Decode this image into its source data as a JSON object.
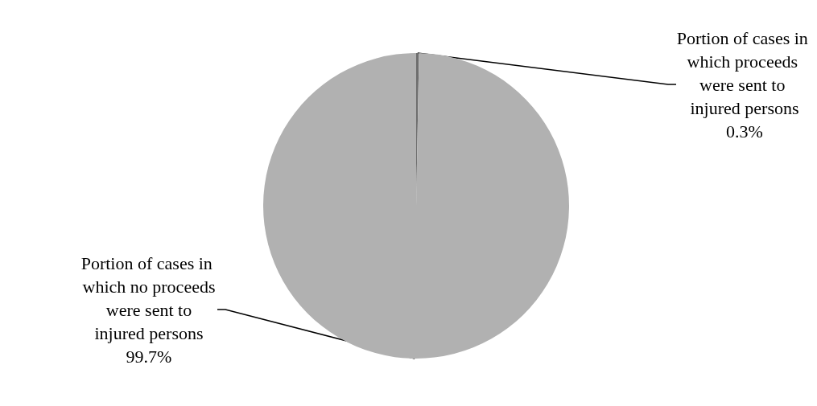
{
  "chart_data": {
    "type": "pie",
    "categories": [
      "Portion of cases in which proceeds were sent to injured persons",
      "Portion of cases in which no proceeds were sent to injured persons"
    ],
    "values": [
      0.3,
      99.7
    ],
    "colors": [
      "#6e6e6e",
      "#b1b1b1"
    ],
    "value_labels": [
      "0.3%",
      "99.7%"
    ],
    "legend": false
  }
}
